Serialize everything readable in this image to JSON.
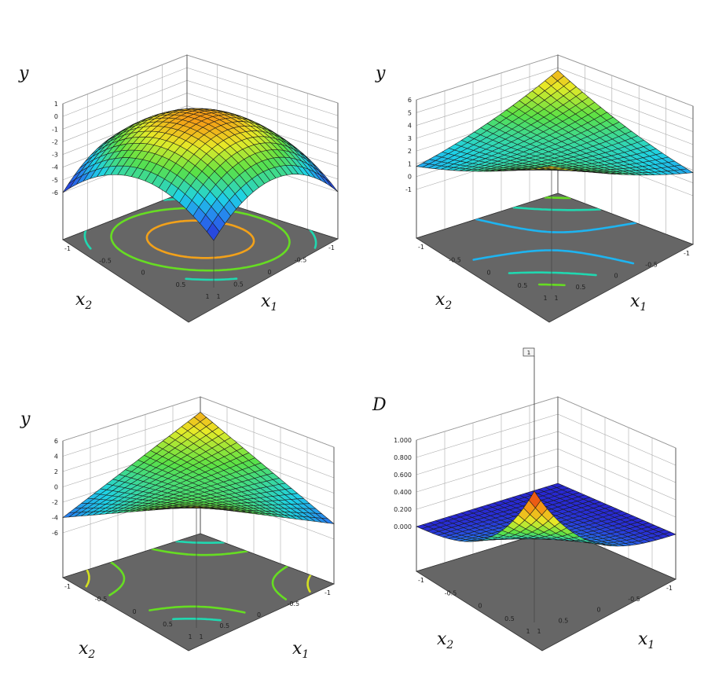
{
  "chart_data": [
    {
      "type": "surface",
      "panel": "top-left",
      "function": "y = -3*(x1^2 + x2^2)",
      "zlabel": "y",
      "xlabel": "x1",
      "ylabel": "x2",
      "zlim": [
        -6,
        1
      ],
      "x_range": [
        -1,
        1
      ],
      "y_range": [
        -1,
        1
      ],
      "z_ticks": [
        "1",
        "0",
        "-1",
        "-2",
        "-3",
        "-4",
        "-5",
        "-6"
      ],
      "x_ticks": [
        "-1",
        "-0.5",
        "0",
        "0.5",
        "1"
      ],
      "y_ticks": [
        "-1",
        "-0.5",
        "0",
        "0.5",
        "1"
      ],
      "colormap": "jet",
      "contour_levels": [
        -0.9,
        -2.5,
        -4.2
      ],
      "contour_colors": [
        "#f2a11a",
        "#66dd22",
        "#20d8b0"
      ],
      "floor_color": "#666666"
    },
    {
      "type": "surface",
      "panel": "top-right",
      "function": "y = 2*x1*x2 + 2 + 0.4*(x1^2 + x2^2)",
      "zlabel": "y",
      "xlabel": "x1",
      "ylabel": "x2",
      "zlim": [
        -1,
        6
      ],
      "x_range": [
        -1,
        1
      ],
      "y_range": [
        -1,
        1
      ],
      "z_ticks": [
        "6",
        "5",
        "4",
        "3",
        "2",
        "1",
        "0",
        "-1"
      ],
      "x_ticks": [
        "-1",
        "-0.5",
        "0",
        "0.5",
        "1"
      ],
      "y_ticks": [
        "-1",
        "-0.5",
        "0",
        "0.5",
        "1"
      ],
      "colormap": "jet",
      "contour_levels": [
        2.1,
        3.2,
        4.3
      ],
      "contour_colors": [
        "#1eb4f0",
        "#20d8b0",
        "#66dd22"
      ],
      "floor_color": "#666666"
    },
    {
      "type": "surface",
      "panel": "bottom-left",
      "function": "y = 4*x1*x2",
      "zlabel": "y",
      "xlabel": "x1",
      "ylabel": "x2",
      "zlim": [
        -6,
        6
      ],
      "x_range": [
        -1,
        1
      ],
      "y_range": [
        -1,
        1
      ],
      "z_ticks": [
        "6",
        "4",
        "2",
        "0",
        "-2",
        "-4",
        "-6"
      ],
      "x_ticks": [
        "-1",
        "-0.5",
        "0",
        "0.5",
        "1"
      ],
      "y_ticks": [
        "-1",
        "-0.5",
        "0",
        "0.5",
        "1"
      ],
      "colormap": "jet",
      "contour_levels": [
        -1.2,
        1.2,
        -2.6,
        2.6
      ],
      "contour_colors": [
        "#66dd22",
        "#66dd22",
        "#d4e020",
        "#20d8b0"
      ],
      "floor_color": "#666666"
    },
    {
      "type": "surface",
      "panel": "bottom-right",
      "function": "D = ((x1 + 1)/2)^3 * ((x2 + 1)/2)^3",
      "zlabel": "D",
      "xlabel": "x1",
      "ylabel": "x2",
      "zlim": [
        0,
        1
      ],
      "x_range": [
        -1,
        1
      ],
      "y_range": [
        -1,
        1
      ],
      "z_ticks": [
        "1.000",
        "0.800",
        "0.600",
        "0.400",
        "0.200",
        "0.000"
      ],
      "x_ticks": [
        "-1",
        "-0.5",
        "0",
        "0.5",
        "1"
      ],
      "y_ticks": [
        "-1",
        "-0.5",
        "0",
        "0.5",
        "1"
      ],
      "colormap": "jet-dark",
      "contour_levels": [],
      "contour_colors": [],
      "floor_color": "#666666",
      "flag_label": "1"
    }
  ]
}
